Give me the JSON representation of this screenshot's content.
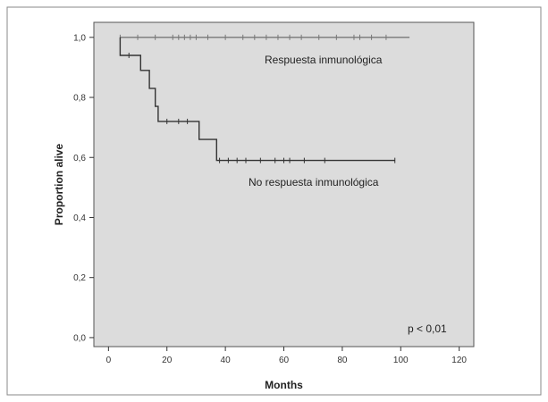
{
  "chart_data": {
    "type": "line",
    "title": "",
    "xlabel": "Months",
    "ylabel": "Proportion alive",
    "xlim": [
      -5,
      125
    ],
    "ylim": [
      -0.03,
      1.05
    ],
    "x_ticks": [
      0,
      20,
      40,
      60,
      80,
      100,
      120
    ],
    "x_tick_labels": [
      "0",
      "20",
      "40",
      "60",
      "80",
      "100",
      "120"
    ],
    "y_ticks": [
      0.0,
      0.2,
      0.4,
      0.6,
      0.8,
      1.0
    ],
    "y_tick_labels": [
      "0,0",
      "0,2",
      "0,4",
      "0,6",
      "0,8",
      "1,0"
    ],
    "grid": false,
    "series": [
      {
        "name": "Respuesta inmunológica",
        "step": [
          [
            4,
            1.0
          ],
          [
            103,
            1.0
          ]
        ],
        "censored_x": [
          4,
          10,
          16,
          22,
          24,
          26,
          28,
          30,
          34,
          40,
          46,
          50,
          54,
          58,
          62,
          66,
          72,
          78,
          84,
          86,
          90,
          95
        ],
        "censored_y": 1.0,
        "color": "#777777"
      },
      {
        "name": "No respuesta inmunológica",
        "step": [
          [
            4,
            1.0
          ],
          [
            4,
            0.94
          ],
          [
            11,
            0.94
          ],
          [
            11,
            0.89
          ],
          [
            14,
            0.89
          ],
          [
            14,
            0.83
          ],
          [
            16,
            0.83
          ],
          [
            16,
            0.77
          ],
          [
            17,
            0.77
          ],
          [
            17,
            0.72
          ],
          [
            31,
            0.72
          ],
          [
            31,
            0.66
          ],
          [
            37,
            0.66
          ],
          [
            37,
            0.59
          ],
          [
            98,
            0.59
          ]
        ],
        "censored_x": [
          7,
          20,
          24,
          27,
          38,
          41,
          44,
          47,
          52,
          57,
          60,
          62,
          67,
          74,
          98
        ],
        "censored_y_values": [
          0.94,
          0.72,
          0.72,
          0.72,
          0.59,
          0.59,
          0.59,
          0.59,
          0.59,
          0.59,
          0.59,
          0.59,
          0.59,
          0.59,
          0.59
        ],
        "color": "#333333"
      }
    ],
    "annotations": [
      "Respuesta inmunológica",
      "No respuesta inmunológica",
      "p < 0,01"
    ]
  },
  "colors": {
    "plot_background": "#dcdcdc",
    "axis": "#333333"
  }
}
